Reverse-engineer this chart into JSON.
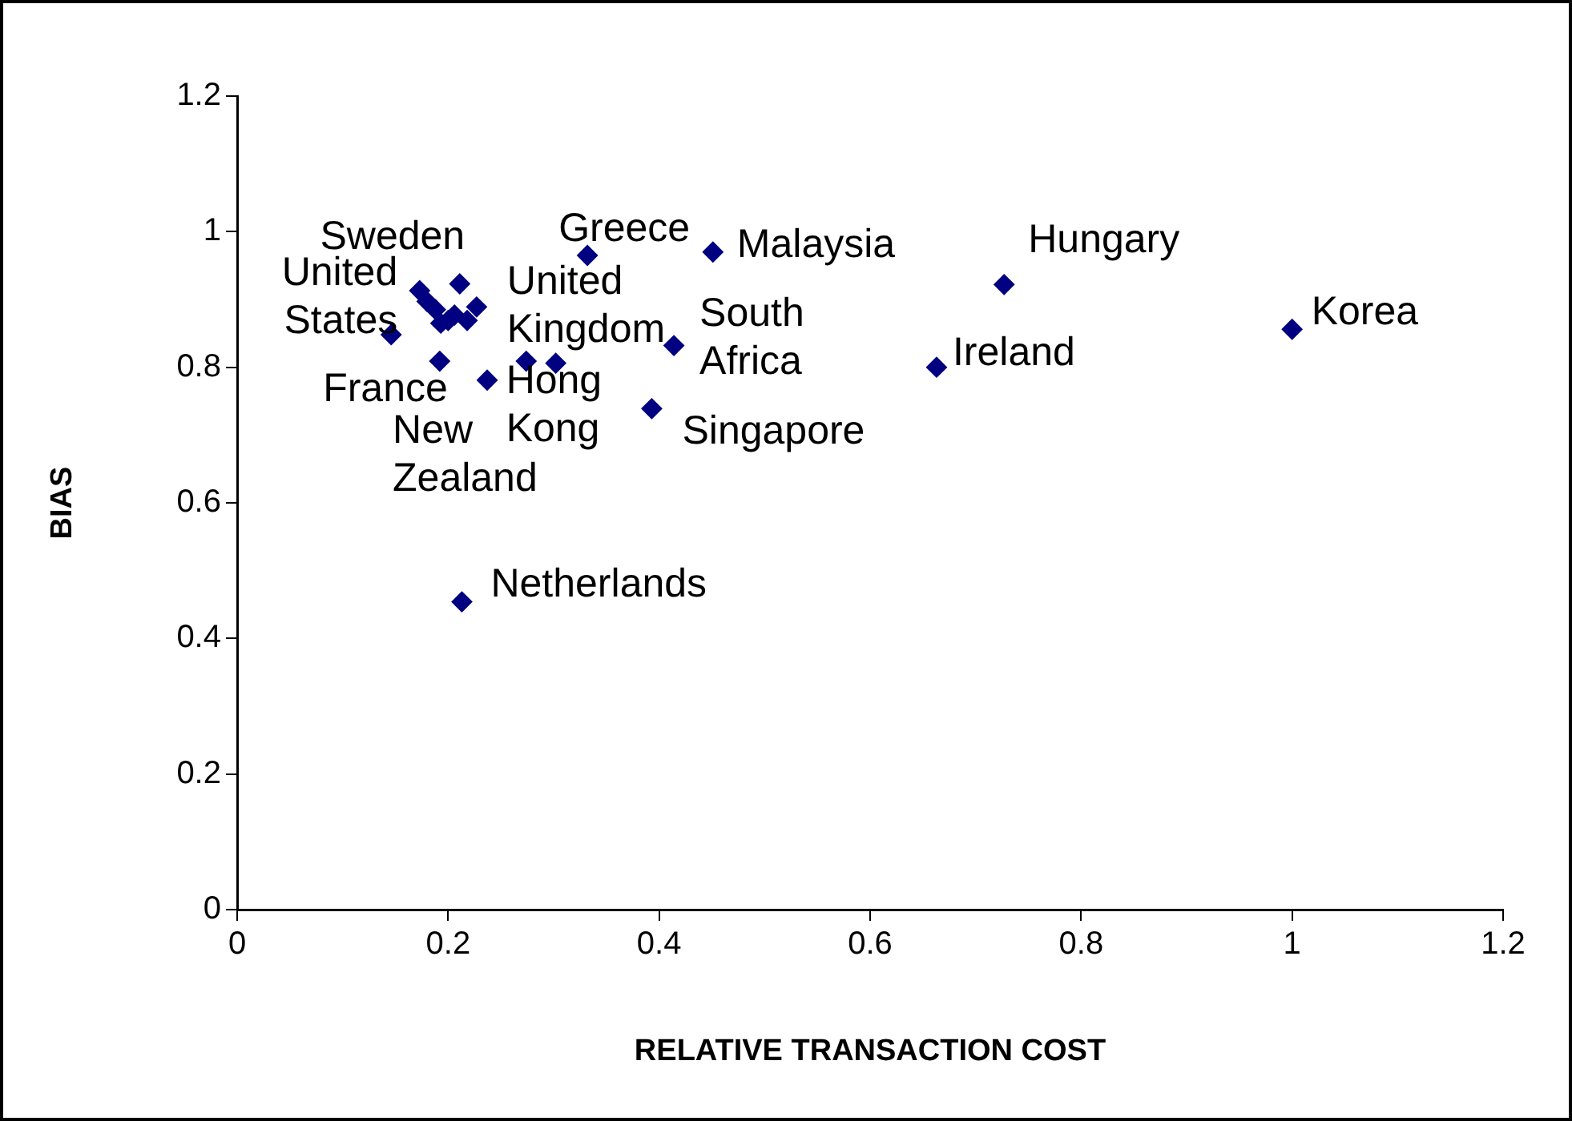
{
  "chart_data": {
    "type": "scatter",
    "xlabel": "RELATIVE TRANSACTION COST",
    "ylabel": "BIAS",
    "xlim": [
      0,
      1.2
    ],
    "xticks": [
      0,
      0.2,
      0.4,
      0.6,
      0.8,
      1,
      1.2
    ],
    "ylim": [
      0,
      1.2
    ],
    "yticks": [
      0,
      0.2,
      0.4,
      0.6,
      0.8,
      1,
      1.2
    ],
    "marker": "diamond",
    "legend": false,
    "series": [
      {
        "color": "#000080",
        "x": [
          0.146,
          0.173,
          0.18,
          0.188,
          0.193,
          0.2,
          0.206,
          0.211,
          0.218,
          0.227,
          0.192,
          0.237,
          0.274,
          0.302,
          0.332,
          0.451,
          0.414,
          0.393,
          0.663,
          0.727,
          1.0,
          0.213
        ],
        "values": [
          0.848,
          0.913,
          0.897,
          0.885,
          0.865,
          0.869,
          0.877,
          0.923,
          0.869,
          0.889,
          0.809,
          0.781,
          0.809,
          0.806,
          0.965,
          0.97,
          0.832,
          0.739,
          0.8,
          0.922,
          0.856,
          0.454
        ]
      }
    ],
    "annotations": [
      {
        "text": "United States",
        "x": 0.146,
        "y": 0.848
      },
      {
        "text": "Sweden",
        "x": 0.173,
        "y": 0.913
      },
      {
        "text": "Greece",
        "x": 0.332,
        "y": 0.965
      },
      {
        "text": "United Kingdom",
        "x": 0.274,
        "y": 0.809
      },
      {
        "text": "France",
        "x": 0.192,
        "y": 0.809
      },
      {
        "text": "New Zealand",
        "x": 0.237,
        "y": 0.781
      },
      {
        "text": "Hong Kong",
        "x": 0.302,
        "y": 0.806
      },
      {
        "text": "Netherlands",
        "x": 0.213,
        "y": 0.454
      },
      {
        "text": "Malaysia",
        "x": 0.451,
        "y": 0.97
      },
      {
        "text": "South Africa",
        "x": 0.414,
        "y": 0.832
      },
      {
        "text": "Singapore",
        "x": 0.393,
        "y": 0.739
      },
      {
        "text": "Ireland",
        "x": 0.663,
        "y": 0.8
      },
      {
        "text": "Hungary",
        "x": 0.727,
        "y": 0.922
      },
      {
        "text": "Korea",
        "x": 1.0,
        "y": 0.856
      }
    ]
  }
}
